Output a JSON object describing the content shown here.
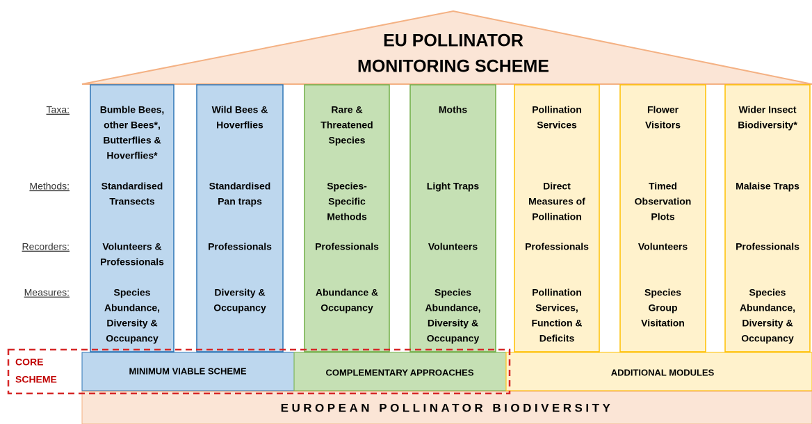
{
  "title": [
    "EU POLLINATOR",
    "MONITORING SCHEME"
  ],
  "row_labels": [
    "Taxa:",
    "Methods:",
    "Recorders:",
    "Measures:"
  ],
  "columns": [
    {
      "taxa": [
        "Bumble Bees,",
        "other Bees*,",
        "Butterflies &",
        "Hoverflies*"
      ],
      "methods": [
        "Standardised",
        "Transects"
      ],
      "recorders": [
        "Volunteers &",
        "Professionals"
      ],
      "measures": [
        "Species",
        "Abundance,",
        "Diversity &",
        "Occupancy"
      ]
    },
    {
      "taxa": [
        "Wild Bees &",
        "Hoverflies"
      ],
      "methods": [
        "Standardised",
        "Pan traps"
      ],
      "recorders": [
        "Professionals"
      ],
      "measures": [
        "Diversity &",
        "Occupancy"
      ]
    },
    {
      "taxa": [
        "Rare &",
        "Threatened",
        "Species"
      ],
      "methods": [
        "Species-",
        "Specific",
        "Methods"
      ],
      "recorders": [
        "Professionals"
      ],
      "measures": [
        "Abundance &",
        "Occupancy"
      ]
    },
    {
      "taxa": [
        "Moths"
      ],
      "methods": [
        "Light Traps"
      ],
      "recorders": [
        "Volunteers"
      ],
      "measures": [
        "Species",
        "Abundance,",
        "Diversity &",
        "Occupancy"
      ]
    },
    {
      "taxa": [
        "Pollination",
        "Services"
      ],
      "methods": [
        "Direct",
        "Measures of",
        "Pollination"
      ],
      "recorders": [
        "Professionals"
      ],
      "measures": [
        "Pollination",
        "Services,",
        "Function &",
        "Deficits"
      ]
    },
    {
      "taxa": [
        "Flower",
        "Visitors"
      ],
      "methods": [
        "Timed",
        "Observation",
        "Plots"
      ],
      "recorders": [
        "Volunteers"
      ],
      "measures": [
        "Species",
        "Group",
        "Visitation"
      ]
    },
    {
      "taxa": [
        "Wider Insect",
        "Biodiversity*"
      ],
      "methods": [
        "Malaise Traps"
      ],
      "recorders": [
        "Professionals"
      ],
      "measures": [
        "Species",
        "Abundance,",
        "Diversity &",
        "Occupancy"
      ]
    }
  ],
  "bases": [
    "MINIMUM VIABLE SCHEME",
    "COMPLEMENTARY APPROACHES",
    "ADDITIONAL MODULES"
  ],
  "core_scheme": [
    "CORE",
    "SCHEME"
  ],
  "foundation": "EUROPEAN POLLINATOR BIODIVERSITY"
}
